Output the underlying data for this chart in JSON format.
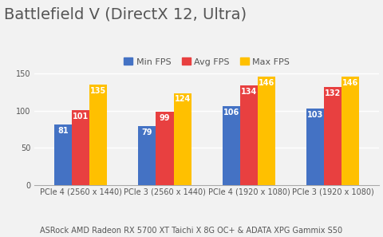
{
  "title": "Battlefield V (DirectX 12, Ultra)",
  "subtitle": "ASRock AMD Radeon RX 5700 XT Taichi X 8G OC+ & ADATA XPG Gammix S50",
  "categories": [
    "PCIe 4 (2560 x 1440)",
    "PCIe 3 (2560 x 1440)",
    "PCIe 4 (1920 x 1080)",
    "PCIe 3 (1920 x 1080)"
  ],
  "series": [
    {
      "name": "Min FPS",
      "color": "#4472C4",
      "values": [
        81,
        79,
        106,
        103
      ]
    },
    {
      "name": "Avg FPS",
      "color": "#E84040",
      "values": [
        101,
        99,
        134,
        132
      ]
    },
    {
      "name": "Max FPS",
      "color": "#FFC000",
      "values": [
        135,
        124,
        146,
        146
      ]
    }
  ],
  "ylim": [
    0,
    160
  ],
  "yticks": [
    0,
    50,
    100,
    150
  ],
  "bar_width": 0.21,
  "title_fontsize": 14,
  "legend_fontsize": 8,
  "tick_fontsize": 7,
  "subtitle_fontsize": 7,
  "label_fontsize": 7,
  "background_color": "#f2f2f2",
  "grid_color": "#ffffff",
  "axis_color": "#aaaaaa",
  "text_color": "#555555"
}
